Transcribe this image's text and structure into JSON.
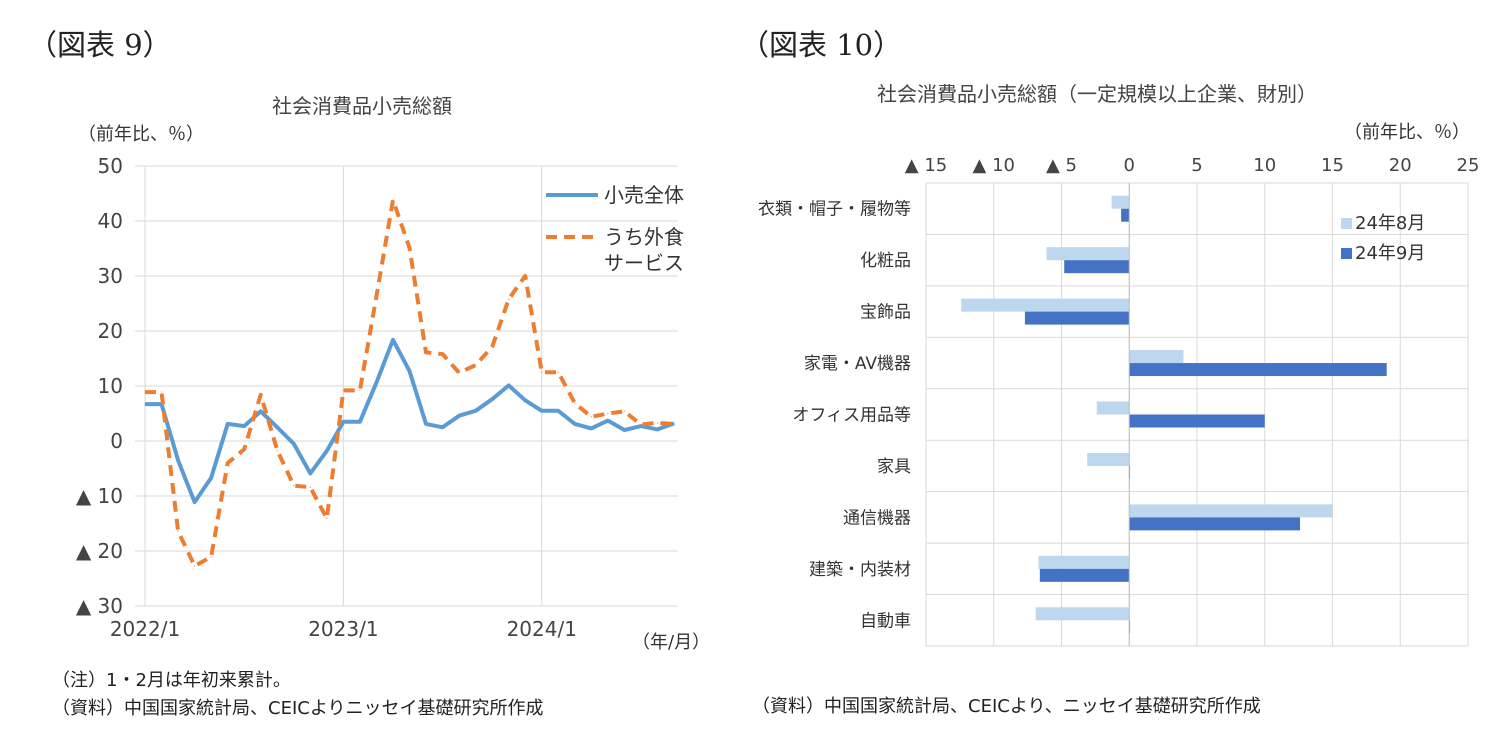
{
  "figures": [
    {
      "label": "（図表 9）",
      "title": "社会消費品小売総額",
      "unit": "（前年比、％）",
      "x_unit": "（年/月）",
      "notes": [
        "（注）1・2月は年初来累計。",
        "（資料）中国国家統計局、CEICよりニッセイ基礎研究所作成"
      ]
    },
    {
      "label": "（図表 10）",
      "title": "社会消費品小売総額（一定規模以上企業、財別）",
      "unit": "（前年比、％）",
      "notes": [
        "（資料）中国国家統計局、CEICより、ニッセイ基礎研究所作成"
      ]
    }
  ],
  "chart_data": [
    {
      "type": "line",
      "title": "社会消費品小売総額",
      "ylabel": "（前年比、％）",
      "xlabel": "（年/月）",
      "ylim": [
        -30,
        50
      ],
      "yticks": [
        {
          "value": 50,
          "label": "50"
        },
        {
          "value": 40,
          "label": "40"
        },
        {
          "value": 30,
          "label": "30"
        },
        {
          "value": 20,
          "label": "20"
        },
        {
          "value": 10,
          "label": "10"
        },
        {
          "value": 0,
          "label": "0"
        },
        {
          "value": -10,
          "label": "▲ 10"
        },
        {
          "value": -20,
          "label": "▲ 20"
        },
        {
          "value": -30,
          "label": "▲ 30"
        }
      ],
      "xticks": [
        {
          "value": "2022/1",
          "label": "2022/1"
        },
        {
          "value": "2023/1",
          "label": "2023/1"
        },
        {
          "value": "2024/1",
          "label": "2024/1"
        }
      ],
      "x": [
        "2022/1",
        "2022/2",
        "2022/3",
        "2022/4",
        "2022/5",
        "2022/6",
        "2022/7",
        "2022/8",
        "2022/9",
        "2022/10",
        "2022/11",
        "2022/12",
        "2023/1",
        "2023/2",
        "2023/3",
        "2023/4",
        "2023/5",
        "2023/6",
        "2023/7",
        "2023/8",
        "2023/9",
        "2023/10",
        "2023/11",
        "2023/12",
        "2024/1",
        "2024/2",
        "2024/3",
        "2024/4",
        "2024/5",
        "2024/6",
        "2024/7",
        "2024/8",
        "2024/9"
      ],
      "grid": true,
      "legend_position": "top-right",
      "series": [
        {
          "name": "小売全体",
          "color": "#5b9bd5",
          "style": "solid",
          "values": [
            6.7,
            6.7,
            -3.5,
            -11.1,
            -6.7,
            3.1,
            2.7,
            5.4,
            2.5,
            -0.5,
            -5.9,
            -1.8,
            3.5,
            3.5,
            10.6,
            18.4,
            12.7,
            3.1,
            2.5,
            4.6,
            5.5,
            7.6,
            10.1,
            7.4,
            5.5,
            5.5,
            3.1,
            2.3,
            3.7,
            2.0,
            2.7,
            2.1,
            3.2
          ]
        },
        {
          "name": "うち外食サービス",
          "name_lines": [
            "うち外食",
            "サービス"
          ],
          "color": "#ed7d31",
          "style": "dashed",
          "values": [
            8.9,
            8.9,
            -16.4,
            -22.7,
            -21.1,
            -4.0,
            -1.5,
            8.4,
            -1.7,
            -8.1,
            -8.4,
            -14.1,
            9.2,
            9.2,
            26.3,
            43.8,
            35.1,
            16.1,
            15.8,
            12.4,
            13.8,
            17.1,
            25.8,
            30.0,
            12.5,
            12.5,
            6.9,
            4.4,
            5.0,
            5.4,
            3.0,
            3.3,
            3.1
          ]
        }
      ]
    },
    {
      "type": "bar",
      "orientation": "horizontal",
      "title": "社会消費品小売総額（一定規模以上企業、財別）",
      "xlabel": "（前年比、％）",
      "xlim": [
        -15,
        25
      ],
      "xticks": [
        {
          "value": -15,
          "label": "▲ 15"
        },
        {
          "value": -10,
          "label": "▲ 10"
        },
        {
          "value": -5,
          "label": "▲ 5"
        },
        {
          "value": 0,
          "label": "0"
        },
        {
          "value": 5,
          "label": "5"
        },
        {
          "value": 10,
          "label": "10"
        },
        {
          "value": 15,
          "label": "15"
        },
        {
          "value": 20,
          "label": "20"
        },
        {
          "value": 25,
          "label": "25"
        }
      ],
      "categories": [
        "衣類・帽子・履物等",
        "化粧品",
        "宝飾品",
        "家電・AV機器",
        "オフィス用品等",
        "家具",
        "通信機器",
        "建築・内装材",
        "自動車"
      ],
      "grid": true,
      "legend_position": "top-right",
      "series": [
        {
          "name": "24年8月",
          "color": "#bdd7ee",
          "values": [
            -1.3,
            -6.1,
            -12.4,
            4.0,
            -2.4,
            -3.1,
            15.0,
            -6.7,
            -6.9
          ]
        },
        {
          "name": "24年9月",
          "color": "#4472c4",
          "values": [
            -0.6,
            -4.8,
            -7.7,
            19.0,
            10.0,
            0.0,
            12.6,
            -6.6,
            0.0
          ]
        }
      ]
    }
  ]
}
